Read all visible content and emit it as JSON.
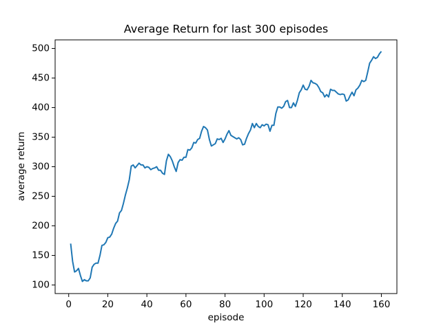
{
  "chart_data": {
    "type": "line",
    "title": "Average Return for last 300 episodes",
    "x_label": "episode",
    "y_label": "average return",
    "x": [
      1,
      2,
      3,
      4,
      5,
      6,
      7,
      8,
      9,
      10,
      11,
      12,
      13,
      14,
      15,
      16,
      17,
      18,
      19,
      20,
      21,
      22,
      23,
      24,
      25,
      26,
      27,
      28,
      29,
      30,
      31,
      32,
      33,
      34,
      35,
      36,
      37,
      38,
      39,
      40,
      41,
      42,
      43,
      44,
      45,
      46,
      47,
      48,
      49,
      50,
      51,
      52,
      53,
      54,
      55,
      56,
      57,
      58,
      59,
      60,
      61,
      62,
      63,
      64,
      65,
      66,
      67,
      68,
      69,
      70,
      71,
      72,
      73,
      74,
      75,
      76,
      77,
      78,
      79,
      80,
      81,
      82,
      83,
      84,
      85,
      86,
      87,
      88,
      89,
      90,
      91,
      92,
      93,
      94,
      95,
      96,
      97,
      98,
      99,
      100,
      101,
      102,
      103,
      104,
      105,
      106,
      107,
      108,
      109,
      110,
      111,
      112,
      113,
      114,
      115,
      116,
      117,
      118,
      119,
      120,
      121,
      122,
      123,
      124,
      125,
      126,
      127,
      128,
      129,
      130,
      131,
      132,
      133,
      134,
      135,
      136,
      137,
      138,
      139,
      140,
      141,
      142,
      143,
      144,
      145,
      146,
      147,
      148,
      149,
      150,
      151,
      152,
      153,
      154,
      155,
      156,
      157,
      158,
      159,
      160
    ],
    "series": [
      {
        "name": "average return",
        "color": "#1f77b4",
        "values": [
          170,
          140,
          122,
          124,
          128,
          116,
          106,
          109,
          107,
          107,
          112,
          130,
          135,
          137,
          137,
          150,
          167,
          168,
          172,
          180,
          181,
          186,
          196,
          204,
          208,
          222,
          226,
          238,
          252,
          264,
          278,
          301,
          303,
          298,
          302,
          306,
          303,
          303,
          298,
          300,
          299,
          295,
          297,
          298,
          300,
          294,
          294,
          289,
          287,
          310,
          321,
          317,
          310,
          300,
          292,
          307,
          312,
          311,
          316,
          316,
          329,
          328,
          332,
          341,
          340,
          346,
          348,
          360,
          368,
          366,
          362,
          346,
          335,
          337,
          339,
          347,
          346,
          348,
          341,
          347,
          355,
          361,
          353,
          351,
          349,
          347,
          349,
          346,
          337,
          338,
          348,
          356,
          362,
          373,
          366,
          373,
          368,
          366,
          371,
          369,
          372,
          371,
          360,
          370,
          370,
          390,
          401,
          401,
          399,
          402,
          410,
          412,
          400,
          400,
          408,
          402,
          412,
          425,
          430,
          438,
          431,
          430,
          436,
          446,
          442,
          441,
          439,
          434,
          427,
          425,
          418,
          422,
          418,
          431,
          429,
          429,
          426,
          423,
          422,
          423,
          422,
          411,
          413,
          420,
          426,
          420,
          430,
          433,
          438,
          446,
          444,
          446,
          460,
          475,
          480,
          486,
          483,
          485,
          491,
          495
        ]
      }
    ],
    "xlim": [
      -6.95,
      167.95
    ],
    "ylim": [
      85.5,
      514.5
    ],
    "xticks": [
      0,
      20,
      40,
      60,
      80,
      100,
      120,
      140,
      160
    ],
    "yticks": [
      100,
      150,
      200,
      250,
      300,
      350,
      400,
      450,
      500
    ]
  }
}
